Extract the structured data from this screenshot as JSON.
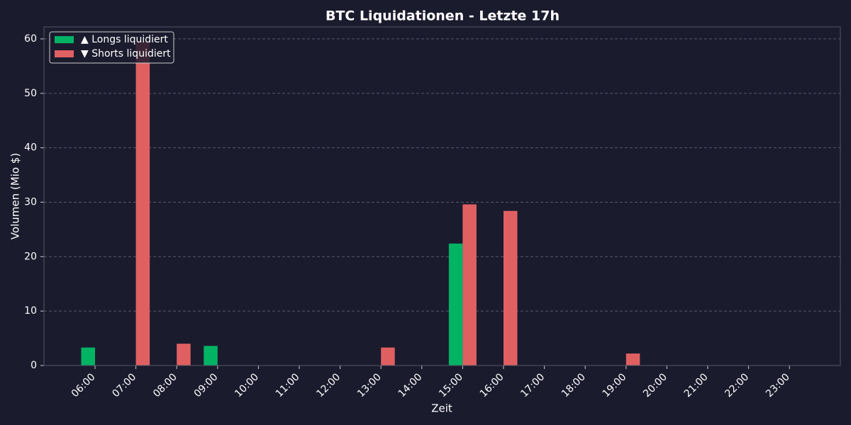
{
  "chart_data": {
    "type": "bar",
    "title": "BTC Liquidationen - Letzte 17h",
    "x_label": "Zeit",
    "y_label": "Volumen (Mio $)",
    "categories": [
      "06:00",
      "07:00",
      "08:00",
      "09:00",
      "10:00",
      "11:00",
      "12:00",
      "13:00",
      "14:00",
      "15:00",
      "16:00",
      "17:00",
      "18:00",
      "19:00",
      "20:00",
      "21:00",
      "22:00",
      "23:00"
    ],
    "series": [
      {
        "name": "▲ Longs liquidiert",
        "color": "#00b464",
        "values": [
          3.3,
          0,
          0,
          3.6,
          0,
          0,
          0,
          0,
          0,
          22.4,
          0,
          0,
          0,
          0,
          0,
          0,
          0,
          0
        ]
      },
      {
        "name": "▼ Shorts liquidiert",
        "color": "#e06062",
        "values": [
          0,
          59.5,
          4.0,
          0,
          0,
          0,
          0,
          3.3,
          0,
          29.6,
          28.4,
          0,
          0,
          2.2,
          0,
          0,
          0,
          0
        ]
      }
    ],
    "ylim": [
      0,
      62.2
    ],
    "yticks": [
      0,
      10,
      20,
      30,
      40,
      50,
      60
    ],
    "grid": true,
    "legend": "upper-left"
  }
}
